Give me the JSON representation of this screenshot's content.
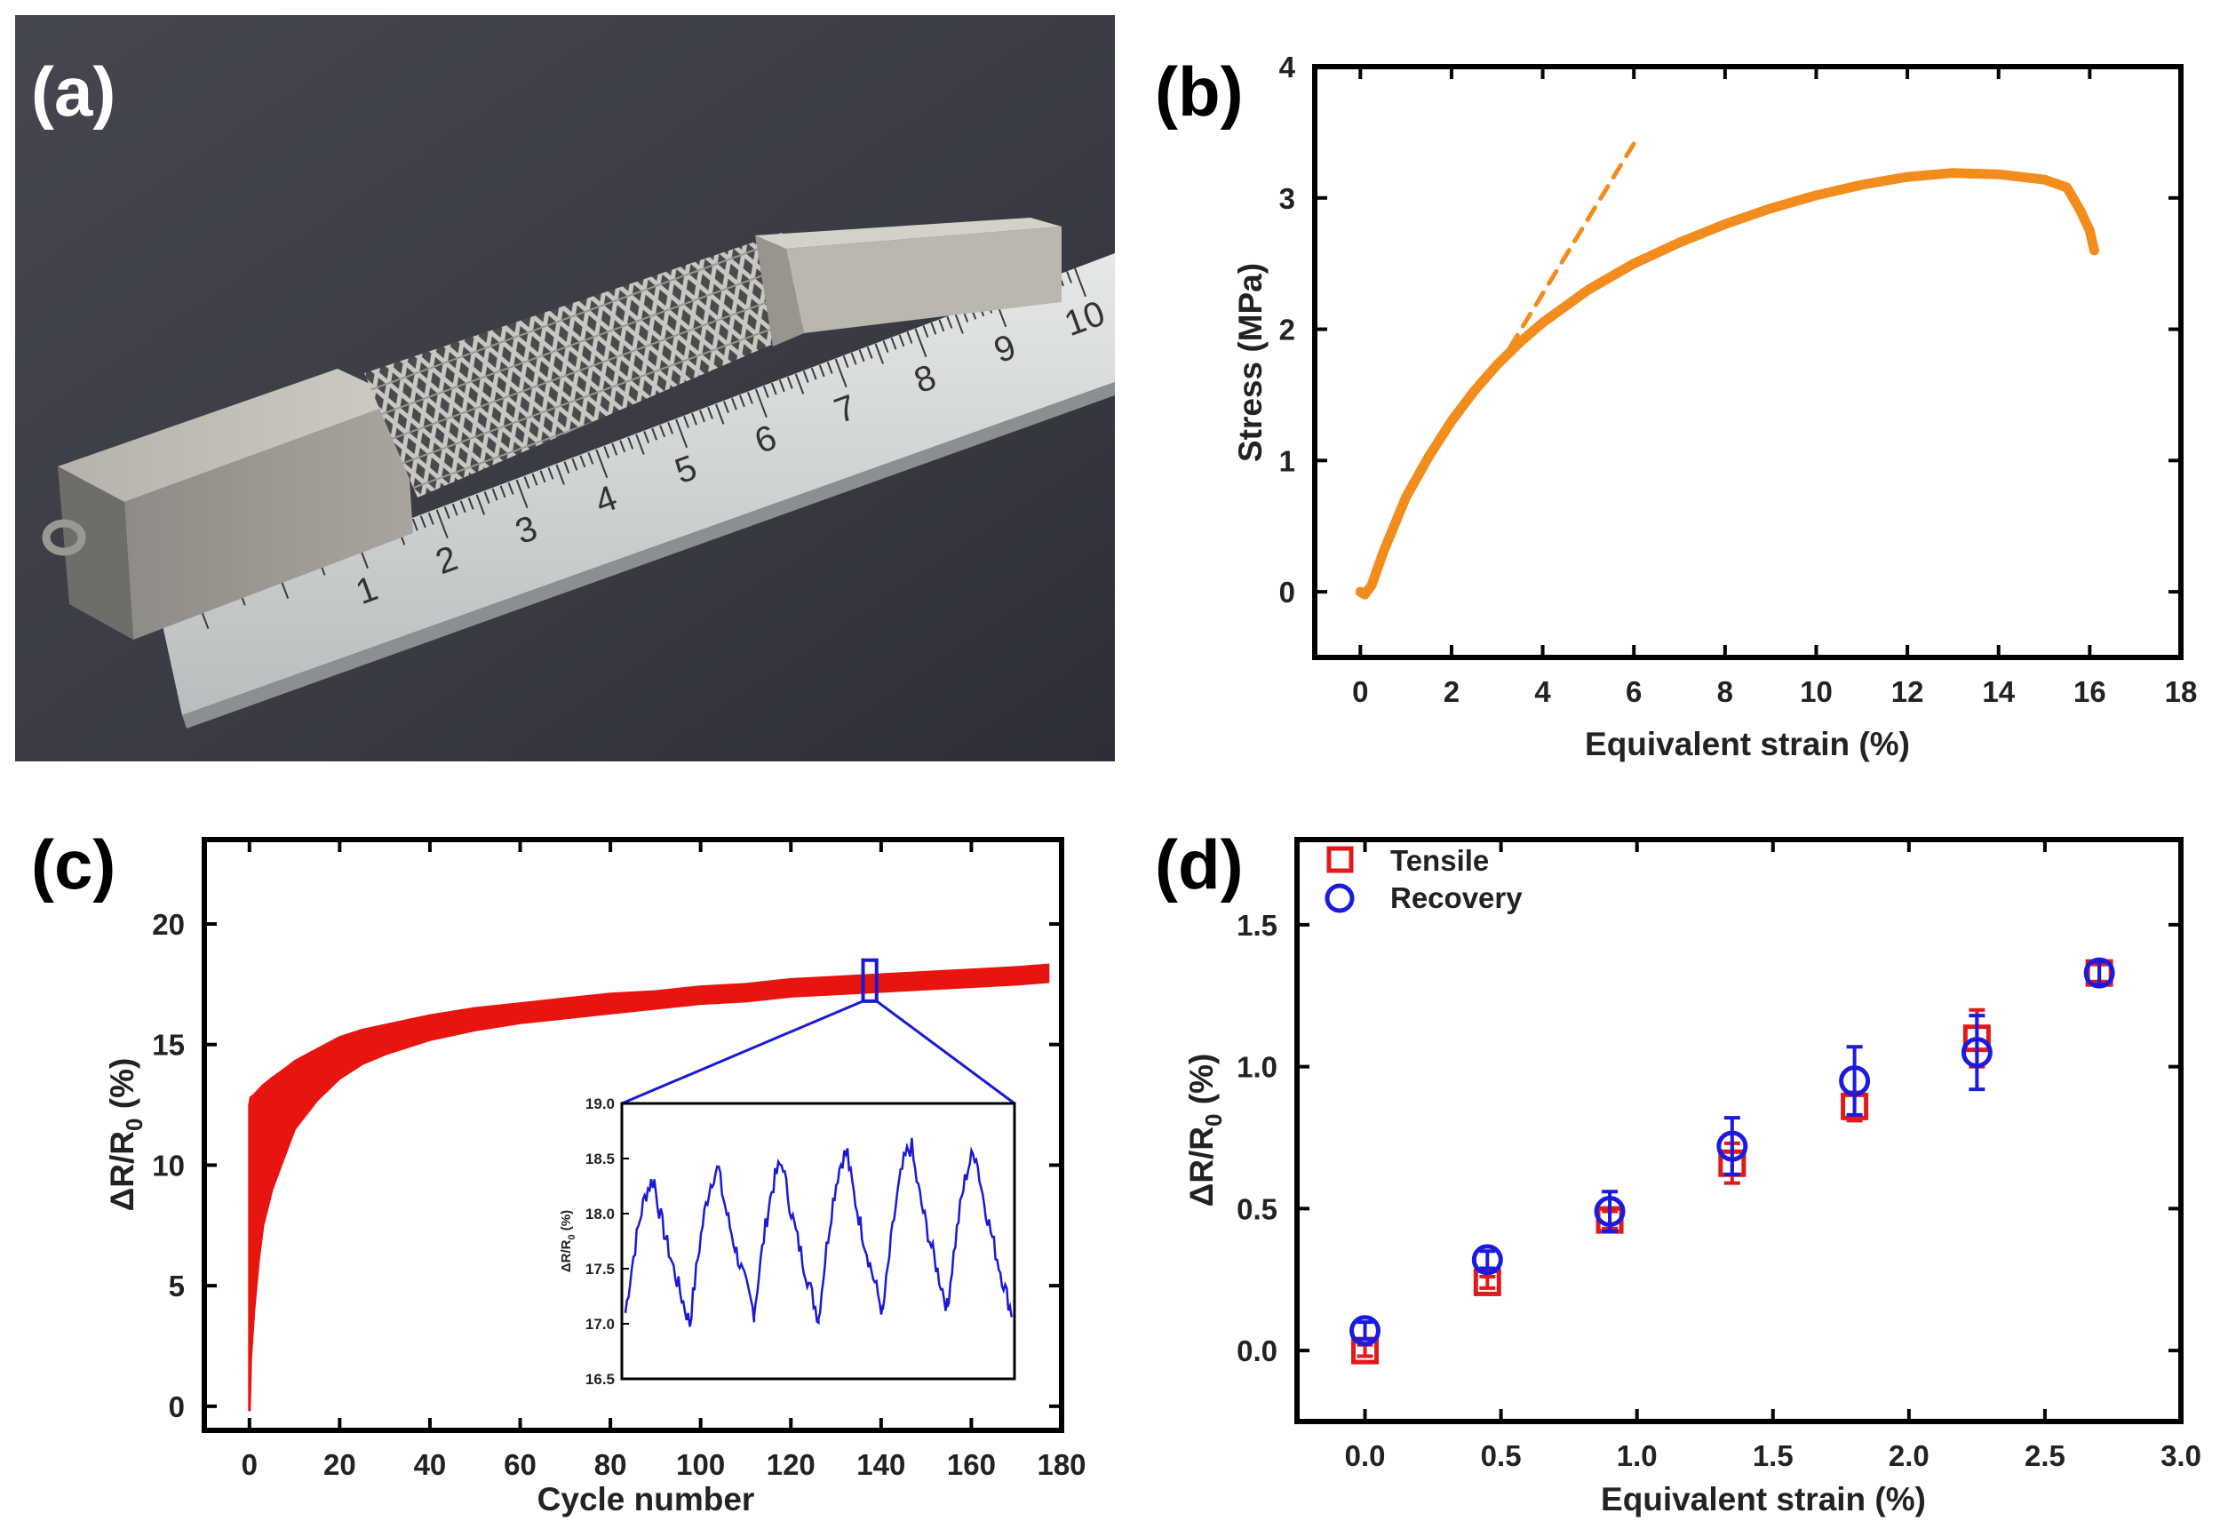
{
  "panels": {
    "a": {
      "letter": "(a)"
    },
    "b": {
      "letter": "(b)"
    },
    "c": {
      "letter": "(c)"
    },
    "d": {
      "letter": "(d)"
    }
  },
  "photo": {
    "ruler_numbers": [
      "1",
      "2",
      "3",
      "4",
      "5",
      "6",
      "7",
      "8",
      "9",
      "10"
    ],
    "highlight_number_color": "#c4303b",
    "ruler_color": "#d9dcdc",
    "background_color": "#3a3b44"
  },
  "chart_data": [
    {
      "id": "b",
      "type": "line",
      "title": "",
      "xlabel": "Equivalent strain (%)",
      "ylabel": "Stress (MPa)",
      "xlim": [
        -1,
        18
      ],
      "ylim": [
        -0.5,
        4
      ],
      "xticks": [
        0,
        2,
        4,
        6,
        8,
        10,
        12,
        14,
        16,
        18
      ],
      "yticks": [
        0,
        1,
        2,
        3,
        4
      ],
      "color": "#f28c1c",
      "series": [
        {
          "style": "solid",
          "x": [
            0,
            0.1,
            0.25,
            0.5,
            1,
            1.5,
            2,
            2.5,
            3,
            3.5,
            4,
            5,
            6,
            7,
            8,
            9,
            10,
            11,
            12,
            13,
            14,
            15,
            15.5,
            15.8,
            16,
            16.1
          ],
          "y": [
            0,
            -0.02,
            0.05,
            0.3,
            0.72,
            1.03,
            1.3,
            1.53,
            1.73,
            1.9,
            2.05,
            2.3,
            2.5,
            2.66,
            2.8,
            2.92,
            3.02,
            3.1,
            3.16,
            3.19,
            3.18,
            3.14,
            3.08,
            2.9,
            2.75,
            2.6
          ]
        },
        {
          "style": "dashed",
          "x": [
            3.0,
            6.1
          ],
          "y": [
            1.7,
            3.47
          ]
        }
      ]
    },
    {
      "id": "c",
      "type": "line",
      "title": "",
      "xlabel": "Cycle number",
      "ylabel": "ΔR/R0 (%)",
      "ylabel_main": "ΔR/R",
      "ylabel_sub": "0",
      "ylabel_unit": " (%)",
      "xlim": [
        -10,
        180
      ],
      "ylim": [
        -1,
        23.5
      ],
      "xticks": [
        0,
        20,
        40,
        60,
        80,
        100,
        120,
        140,
        160,
        180
      ],
      "yticks": [
        0,
        5,
        10,
        15,
        20
      ],
      "color": "#e8140f",
      "envelope": {
        "x": [
          0,
          0.3,
          1,
          2,
          3,
          5,
          8,
          10,
          15,
          20,
          25,
          30,
          40,
          50,
          60,
          70,
          80,
          90,
          100,
          110,
          120,
          130,
          140,
          150,
          160,
          170,
          177
        ],
        "upper": [
          12.5,
          12.8,
          12.9,
          13.1,
          13.3,
          13.6,
          14.0,
          14.3,
          14.8,
          15.3,
          15.6,
          15.8,
          16.2,
          16.5,
          16.7,
          16.9,
          17.1,
          17.2,
          17.4,
          17.5,
          17.7,
          17.8,
          17.9,
          18.0,
          18.1,
          18.2,
          18.3
        ],
        "lower": [
          -0.2,
          2.0,
          4.0,
          6.0,
          7.5,
          9.0,
          10.5,
          11.5,
          12.7,
          13.6,
          14.2,
          14.6,
          15.2,
          15.6,
          15.9,
          16.1,
          16.3,
          16.5,
          16.7,
          16.8,
          17.0,
          17.1,
          17.2,
          17.3,
          17.4,
          17.5,
          17.6
        ]
      },
      "zoom_box": {
        "x": [
          136,
          139
        ],
        "y": [
          16.8,
          18.5
        ]
      },
      "zoom_color": "#1a1ad6",
      "inset": {
        "type": "line",
        "ylabel_main": "ΔR/R",
        "ylabel_sub": "0",
        "ylabel_unit": " (%)",
        "ylim": [
          16.5,
          19.0
        ],
        "yticks": [
          "16.5",
          "17.0",
          "17.5",
          "18.0",
          "18.5",
          "19.0"
        ],
        "cycles": 6,
        "peak_values": [
          18.3,
          18.4,
          18.45,
          18.55,
          18.6,
          18.55
        ],
        "trough_values": [
          17.1,
          17.0,
          17.1,
          17.05,
          17.1,
          17.15,
          17.1
        ],
        "color": "#1a1ad6"
      }
    },
    {
      "id": "d",
      "type": "scatter",
      "title": "",
      "xlabel": "Equivalent strain (%)",
      "ylabel": "ΔR/R0 (%)",
      "ylabel_main": "ΔR/R",
      "ylabel_sub": "0",
      "ylabel_unit": " (%)",
      "xlim": [
        -0.25,
        3.0
      ],
      "ylim": [
        -0.25,
        1.8
      ],
      "xticks": [
        "0.0",
        "0.5",
        "1.0",
        "1.5",
        "2.0",
        "2.5",
        "3.0"
      ],
      "yticks": [
        "0.0",
        "0.5",
        "1.0",
        "1.5"
      ],
      "legend_position": "top-left",
      "series": [
        {
          "name": "Tensile",
          "marker": "square",
          "color": "#e01a1a",
          "x": [
            0.0,
            0.45,
            0.9,
            1.35,
            1.8,
            2.25,
            2.7
          ],
          "y": [
            0.0,
            0.24,
            0.46,
            0.66,
            0.86,
            1.1,
            1.33
          ],
          "err": [
            0.02,
            0.02,
            0.03,
            0.07,
            0.05,
            0.1,
            0.03
          ]
        },
        {
          "name": "Recovery",
          "marker": "circle",
          "color": "#1a1ae0",
          "x": [
            0.0,
            0.45,
            0.9,
            1.35,
            1.8,
            2.25,
            2.7
          ],
          "y": [
            0.07,
            0.32,
            0.49,
            0.72,
            0.95,
            1.05,
            1.33
          ],
          "err": [
            0.03,
            0.03,
            0.07,
            0.1,
            0.12,
            0.13,
            0.04
          ]
        }
      ]
    }
  ]
}
